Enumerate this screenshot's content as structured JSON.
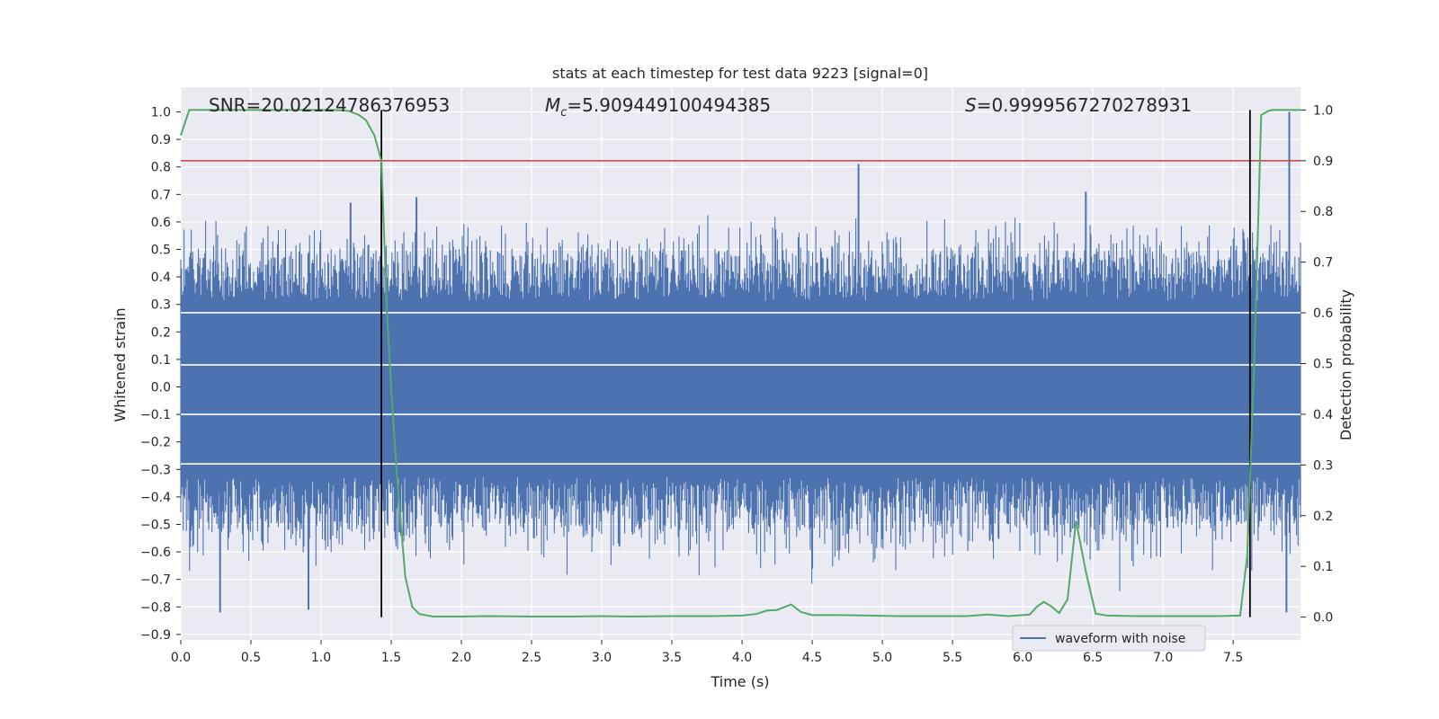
{
  "chart_data": {
    "type": "line",
    "title": "stats at each timestep for test data 9223 [signal=0]",
    "xlabel": "Time (s)",
    "ylabel": "Whitened strain",
    "y2label": "Detection probability",
    "xlim": [
      0.0,
      7.98
    ],
    "ylim": [
      -0.92,
      1.09
    ],
    "y2lim": [
      -0.045,
      1.045
    ],
    "x_ticks": [
      0.0,
      0.5,
      1.0,
      1.5,
      2.0,
      2.5,
      3.0,
      3.5,
      4.0,
      4.5,
      5.0,
      5.5,
      6.0,
      6.5,
      7.0,
      7.5
    ],
    "x_tick_labels": [
      "0.0",
      "0.5",
      "1.0",
      "1.5",
      "2.0",
      "2.5",
      "3.0",
      "3.5",
      "4.0",
      "4.5",
      "5.0",
      "5.5",
      "6.0",
      "6.5",
      "7.0",
      "7.5"
    ],
    "y_ticks": [
      -0.9,
      -0.8,
      -0.7,
      -0.6,
      -0.5,
      -0.4,
      -0.3,
      -0.2,
      -0.1,
      0.0,
      0.1,
      0.2,
      0.3,
      0.4,
      0.5,
      0.6,
      0.7,
      0.8,
      0.9,
      1.0
    ],
    "y_tick_labels": [
      "−0.9",
      "−0.8",
      "−0.7",
      "−0.6",
      "−0.5",
      "−0.4",
      "−0.3",
      "−0.2",
      "−0.1",
      "0.0",
      "0.1",
      "0.2",
      "0.3",
      "0.4",
      "0.5",
      "0.6",
      "0.7",
      "0.8",
      "0.9",
      "1.0"
    ],
    "y2_ticks": [
      0.0,
      0.1,
      0.2,
      0.3,
      0.4,
      0.5,
      0.6,
      0.7,
      0.8,
      0.9,
      1.0
    ],
    "y2_tick_labels": [
      "0.0",
      "0.1",
      "0.2",
      "0.3",
      "0.4",
      "0.5",
      "0.6",
      "0.7",
      "0.8",
      "0.9",
      "1.0"
    ],
    "grid": true,
    "annotations": {
      "snr": "SNR=20.02124786376953",
      "mc_prefix": "M",
      "mc_sub": "c",
      "mc_value": "=5.909449100494385",
      "s_prefix": "S",
      "s_value": "=0.9999567270278931"
    },
    "waveform": {
      "name": "waveform with noise",
      "color": "#4c72b0",
      "duration": 7.98,
      "core_low": -0.28,
      "core_high": 0.27,
      "spikes": [
        {
          "x": 0.28,
          "y": -0.82
        },
        {
          "x": 0.91,
          "y": -0.81
        },
        {
          "x": 1.43,
          "y": 0.83
        },
        {
          "x": 4.83,
          "y": 0.81
        },
        {
          "x": 6.45,
          "y": 0.71
        },
        {
          "x": 7.9,
          "y": 1.0
        },
        {
          "x": 7.88,
          "y": -0.82
        },
        {
          "x": 1.21,
          "y": 0.67
        },
        {
          "x": 1.68,
          "y": 0.69
        }
      ]
    },
    "probability": {
      "color": "#55a868",
      "x": [
        0.0,
        0.06,
        0.2,
        0.5,
        0.8,
        1.0,
        1.1,
        1.2,
        1.27,
        1.32,
        1.38,
        1.43,
        1.47,
        1.5,
        1.54,
        1.6,
        1.65,
        1.7,
        1.8,
        2.0,
        2.2,
        2.5,
        2.8,
        3.0,
        3.2,
        3.5,
        3.8,
        4.0,
        4.1,
        4.18,
        4.25,
        4.35,
        4.42,
        4.5,
        4.7,
        4.9,
        5.1,
        5.4,
        5.6,
        5.75,
        5.9,
        6.05,
        6.1,
        6.15,
        6.2,
        6.26,
        6.32,
        6.38,
        6.45,
        6.52,
        6.6,
        6.8,
        7.0,
        7.2,
        7.4,
        7.55,
        7.6,
        7.65,
        7.7,
        7.75,
        7.78,
        7.82,
        7.9,
        7.98
      ],
      "y": [
        0.95,
        1.0,
        1.0,
        1.0,
        1.0,
        1.0,
        1.0,
        0.998,
        0.99,
        0.98,
        0.95,
        0.9,
        0.6,
        0.45,
        0.28,
        0.08,
        0.02,
        0.006,
        0.001,
        0.001,
        0.002,
        0.001,
        0.001,
        0.002,
        0.001,
        0.002,
        0.002,
        0.003,
        0.006,
        0.013,
        0.014,
        0.025,
        0.01,
        0.004,
        0.004,
        0.003,
        0.002,
        0.002,
        0.002,
        0.005,
        0.002,
        0.005,
        0.02,
        0.03,
        0.022,
        0.008,
        0.035,
        0.19,
        0.09,
        0.007,
        0.003,
        0.002,
        0.002,
        0.002,
        0.002,
        0.003,
        0.12,
        0.5,
        0.99,
        0.998,
        1.0,
        1.0,
        1.0,
        1.0
      ]
    },
    "threshold_y2": 0.9,
    "threshold_color": "#c44e52",
    "vlines_x": [
      1.43,
      7.62
    ],
    "vline_color": "#000000",
    "hlines_y": [
      -0.28,
      -0.1,
      0.08,
      0.27
    ],
    "legend_position": "lower-right"
  }
}
